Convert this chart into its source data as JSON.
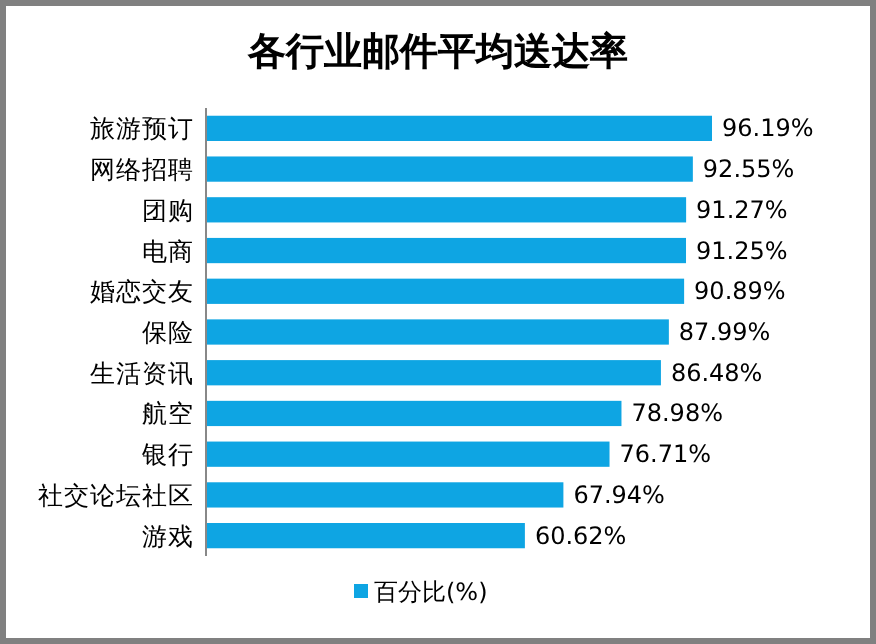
{
  "chart_data": {
    "type": "bar",
    "orientation": "horizontal",
    "title": "各行业邮件平均送达率",
    "categories": [
      "旅游预订",
      "网络招聘",
      "团购",
      "电商",
      "婚恋交友",
      "保险",
      "生活资讯",
      "航空",
      "银行",
      "社交论坛社区",
      "游戏"
    ],
    "series": [
      {
        "name": "百分比(%)",
        "color": "#0ea5e3",
        "values": [
          96.19,
          92.55,
          91.27,
          91.25,
          90.89,
          87.99,
          86.48,
          78.98,
          76.71,
          67.94,
          60.62
        ],
        "value_labels": [
          "96.19%",
          "92.55%",
          "91.27%",
          "91.25%",
          "90.89%",
          "87.99%",
          "86.48%",
          "78.98%",
          "76.71%",
          "67.94%",
          "60.62%"
        ]
      }
    ],
    "legend": "bottom"
  }
}
